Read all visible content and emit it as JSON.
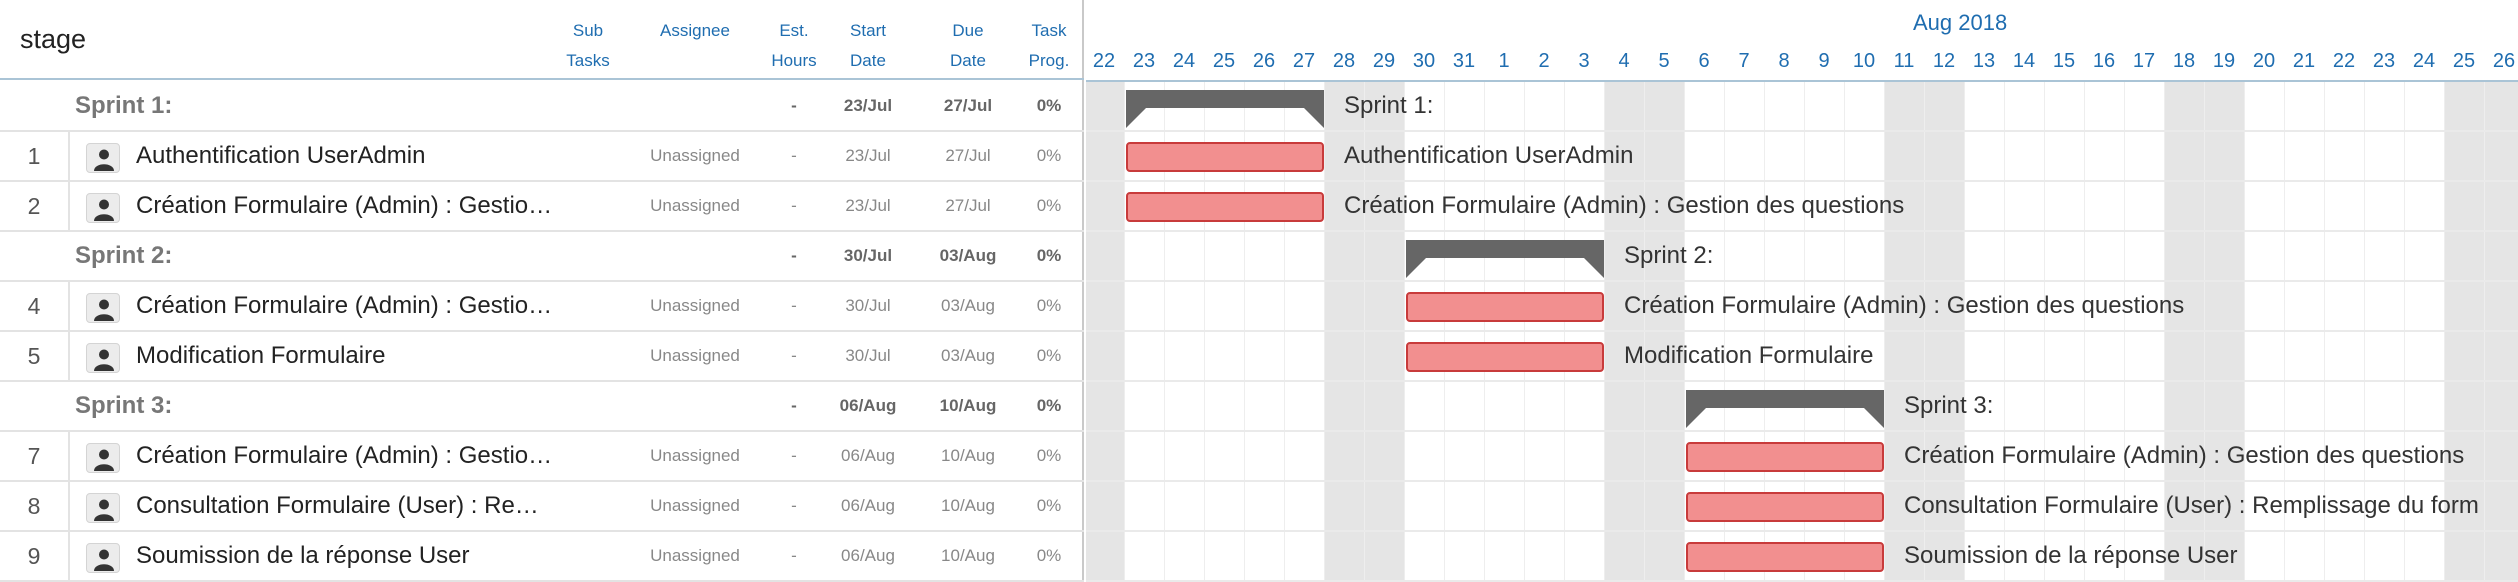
{
  "project": {
    "title": "stage"
  },
  "columns": {
    "sub_tasks": [
      "Sub",
      "Tasks"
    ],
    "assignee": "Assignee",
    "est_hours": [
      "Est.",
      "Hours"
    ],
    "start_date": [
      "Start",
      "Date"
    ],
    "due_date": [
      "Due",
      "Date"
    ],
    "task_prog": [
      "Task",
      "Prog."
    ]
  },
  "rows": [
    {
      "type": "group",
      "num": "",
      "name": "Sprint 1:",
      "assignee": "",
      "est": "-",
      "start": "23/Jul",
      "due": "27/Jul",
      "prog": "0%"
    },
    {
      "type": "task",
      "num": "1",
      "name": "Authentification UserAdmin",
      "assignee": "Unassigned",
      "est": "-",
      "start": "23/Jul",
      "due": "27/Jul",
      "prog": "0%"
    },
    {
      "type": "task",
      "num": "2",
      "name": "Création Formulaire (Admin) : Gestio…",
      "assignee": "Unassigned",
      "est": "-",
      "start": "23/Jul",
      "due": "27/Jul",
      "prog": "0%"
    },
    {
      "type": "group",
      "num": "",
      "name": "Sprint 2:",
      "assignee": "",
      "est": "-",
      "start": "30/Jul",
      "due": "03/Aug",
      "prog": "0%"
    },
    {
      "type": "task",
      "num": "4",
      "name": "Création Formulaire (Admin) : Gestio…",
      "assignee": "Unassigned",
      "est": "-",
      "start": "30/Jul",
      "due": "03/Aug",
      "prog": "0%"
    },
    {
      "type": "task",
      "num": "5",
      "name": "Modification Formulaire",
      "assignee": "Unassigned",
      "est": "-",
      "start": "30/Jul",
      "due": "03/Aug",
      "prog": "0%"
    },
    {
      "type": "group",
      "num": "",
      "name": "Sprint 3:",
      "assignee": "",
      "est": "-",
      "start": "06/Aug",
      "due": "10/Aug",
      "prog": "0%"
    },
    {
      "type": "task",
      "num": "7",
      "name": "Création Formulaire (Admin) : Gestio…",
      "assignee": "Unassigned",
      "est": "-",
      "start": "06/Aug",
      "due": "10/Aug",
      "prog": "0%"
    },
    {
      "type": "task",
      "num": "8",
      "name": "Consultation Formulaire (User) : Re…",
      "assignee": "Unassigned",
      "est": "-",
      "start": "06/Aug",
      "due": "10/Aug",
      "prog": "0%"
    },
    {
      "type": "task",
      "num": "9",
      "name": "Soumission de la réponse User",
      "assignee": "Unassigned",
      "est": "-",
      "start": "06/Aug",
      "due": "10/Aug",
      "prog": "0%"
    }
  ],
  "gantt": {
    "month_label": "Aug 2018",
    "days": [
      "22",
      "23",
      "24",
      "25",
      "26",
      "27",
      "28",
      "29",
      "30",
      "31",
      "1",
      "2",
      "3",
      "4",
      "5",
      "6",
      "7",
      "8",
      "9",
      "10",
      "11",
      "12",
      "13",
      "14",
      "15",
      "16",
      "17",
      "18",
      "19",
      "20",
      "21",
      "22",
      "23",
      "24",
      "25",
      "26"
    ],
    "weekend_days": [
      0,
      6,
      7,
      13,
      14,
      20,
      21,
      27,
      28,
      34,
      35
    ],
    "bars": [
      {
        "type": "summary",
        "start": 1,
        "end": 5,
        "label": "Sprint 1:"
      },
      {
        "type": "task",
        "start": 1,
        "end": 5,
        "label": "Authentification UserAdmin"
      },
      {
        "type": "task",
        "start": 1,
        "end": 5,
        "label": "Création Formulaire (Admin) : Gestion des questions"
      },
      {
        "type": "summary",
        "start": 8,
        "end": 12,
        "label": "Sprint 2:"
      },
      {
        "type": "task",
        "start": 8,
        "end": 12,
        "label": "Création Formulaire (Admin) : Gestion des questions"
      },
      {
        "type": "task",
        "start": 8,
        "end": 12,
        "label": "Modification Formulaire"
      },
      {
        "type": "summary",
        "start": 15,
        "end": 19,
        "label": "Sprint 3:"
      },
      {
        "type": "task",
        "start": 15,
        "end": 19,
        "label": "Création Formulaire (Admin) : Gestion des questions"
      },
      {
        "type": "task",
        "start": 15,
        "end": 19,
        "label": "Consultation Formulaire (User) : Remplissage du form"
      },
      {
        "type": "task",
        "start": 15,
        "end": 19,
        "label": "Soumission de la réponse User"
      }
    ]
  },
  "colors": {
    "header_text": "#1f6db0",
    "task_bar_fill": "#f28f8f",
    "task_bar_border": "#c83b3b",
    "summary_bar": "#666666",
    "weekend_bg": "#e5e5e5"
  }
}
